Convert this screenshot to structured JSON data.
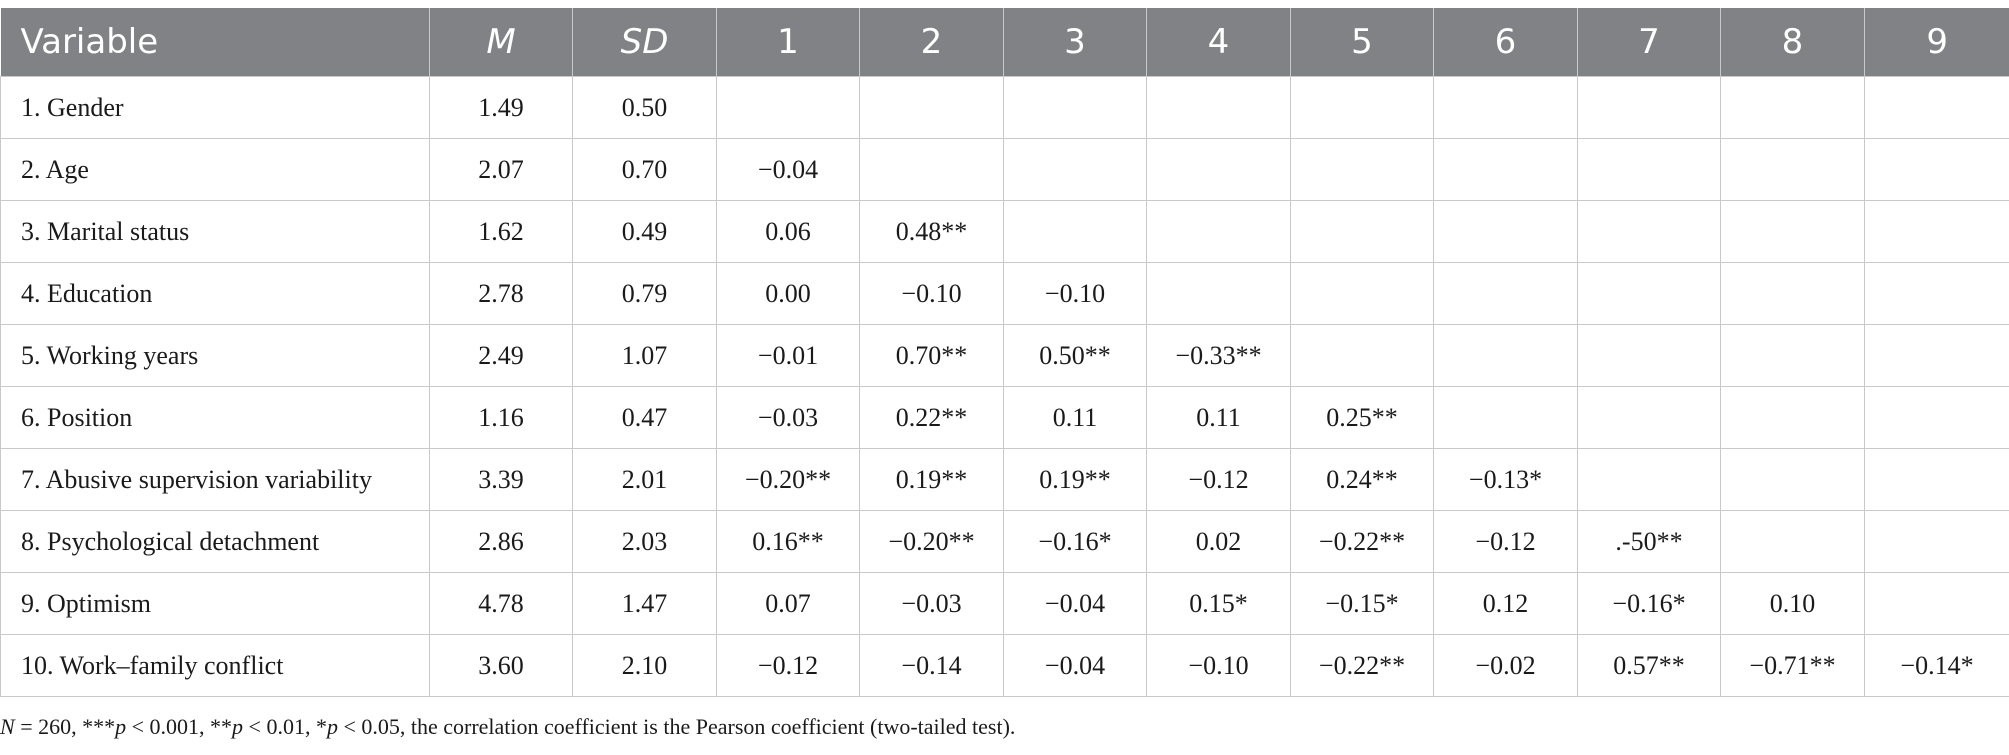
{
  "table": {
    "headers": [
      "Variable",
      "M",
      "SD",
      "1",
      "2",
      "3",
      "4",
      "5",
      "6",
      "7",
      "8",
      "9"
    ],
    "rows": [
      [
        "1. Gender",
        "1.49",
        "0.50",
        "",
        "",
        "",
        "",
        "",
        "",
        "",
        "",
        ""
      ],
      [
        "2. Age",
        "2.07",
        "0.70",
        "−0.04",
        "",
        "",
        "",
        "",
        "",
        "",
        "",
        ""
      ],
      [
        "3. Marital status",
        "1.62",
        "0.49",
        "0.06",
        "0.48**",
        "",
        "",
        "",
        "",
        "",
        "",
        ""
      ],
      [
        "4. Education",
        "2.78",
        "0.79",
        "0.00",
        "−0.10",
        "−0.10",
        "",
        "",
        "",
        "",
        "",
        ""
      ],
      [
        "5. Working years",
        "2.49",
        "1.07",
        "−0.01",
        "0.70**",
        "0.50**",
        "−0.33**",
        "",
        "",
        "",
        "",
        ""
      ],
      [
        "6. Position",
        "1.16",
        "0.47",
        "−0.03",
        "0.22**",
        "0.11",
        "0.11",
        "0.25**",
        "",
        "",
        "",
        ""
      ],
      [
        "7. Abusive supervision variability",
        "3.39",
        "2.01",
        "−0.20**",
        "0.19**",
        "0.19**",
        "−0.12",
        "0.24**",
        "−0.13*",
        "",
        "",
        ""
      ],
      [
        "8. Psychological detachment",
        "2.86",
        "2.03",
        "0.16**",
        "−0.20**",
        "−0.16*",
        "0.02",
        "−0.22**",
        "−0.12",
        ".-50**",
        "",
        ""
      ],
      [
        "9. Optimism",
        "4.78",
        "1.47",
        "0.07",
        "−0.03",
        "−0.04",
        "0.15*",
        "−0.15*",
        "0.12",
        "−0.16*",
        "0.10",
        ""
      ],
      [
        "10. Work–family conflict",
        "3.60",
        "2.10",
        "−0.12",
        "−0.14",
        "−0.04",
        "−0.10",
        "−0.22**",
        "−0.02",
        "0.57**",
        "−0.71**",
        "−0.14*"
      ]
    ]
  },
  "footnote": {
    "n_label": "N",
    "n_value": " = 260, ***",
    "p1_label": "p",
    "p1_value": " < 0.001, **",
    "p2_label": "p",
    "p2_value": " < 0.01, *",
    "p3_label": "p",
    "p3_value": " < 0.05, the correlation coefficient is the Pearson coefficient (two-tailed test)."
  },
  "colors": {
    "header_bg": "#818285",
    "header_text": "#ffffff",
    "grid": "#c9c9c9",
    "body_text": "#1a1a1a"
  }
}
